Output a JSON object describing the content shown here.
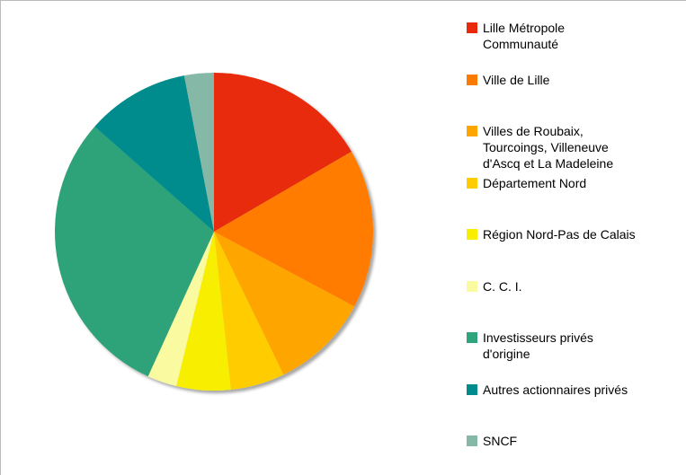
{
  "chart_data": {
    "type": "pie",
    "series": [
      {
        "name": "Lille Métropole\nCommunauté",
        "color": "#e8290b",
        "values": [
          16.6
        ]
      },
      {
        "name": "Ville de Lille",
        "color": "#ff7b00",
        "values": [
          16.2
        ]
      },
      {
        "name": "Villes de Roubaix,\nTourcoings, Villeneuve\nd'Ascq et La Madeleine",
        "color": "#ffa500",
        "values": [
          10
        ]
      },
      {
        "name": "Département Nord",
        "color": "#ffcc00",
        "values": [
          5.5
        ]
      },
      {
        "name": "Région Nord-Pas de Calais",
        "color": "#f8ef00",
        "values": [
          5.5
        ]
      },
      {
        "name": "C. C. I.",
        "color": "#fafaa0",
        "values": [
          3
        ]
      },
      {
        "name": "Investisseurs privés\nd'origine",
        "color": "#2fa37a",
        "values": [
          29.7
        ]
      },
      {
        "name": "Autres actionnaires privés",
        "color": "#008c8c",
        "values": [
          10.5
        ]
      },
      {
        "name": "SNCF",
        "color": "#86b8a8",
        "values": [
          3
        ]
      }
    ]
  }
}
